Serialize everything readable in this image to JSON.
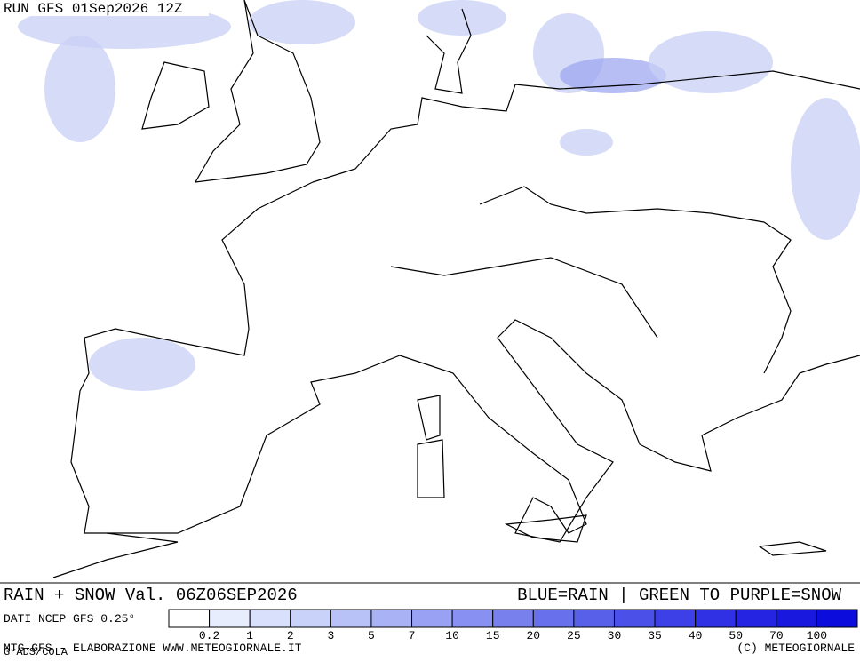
{
  "header": {
    "run": "RUN GFS 01Sep2026 12Z"
  },
  "footer": {
    "title": "RAIN + SNOW Val. 06Z06SEP2026",
    "key": "BLUE=RAIN | GREEN TO PURPLE=SNOW",
    "source": "DATI NCEP GFS 0.25°",
    "credit": "MTG-GFS - ELABORAZIONE WWW.METEOGIORNALE.IT",
    "grads": "GrADS/COLA",
    "copyright": "(C) METEOGIORNALE"
  },
  "legend": {
    "labels": [
      0.2,
      1,
      2,
      3,
      5,
      7,
      10,
      15,
      20,
      25,
      30,
      35,
      40,
      50,
      70,
      100
    ],
    "colors": [
      "#ffffff",
      "#e8edfd",
      "#d8e0fb",
      "#c9d2f9",
      "#b9c2f7",
      "#a9b2f5",
      "#98a1f3",
      "#8890f1",
      "#7880ee",
      "#6870ec",
      "#5860ea",
      "#4a50e8",
      "#3c40e6",
      "#3030e4",
      "#2424e2",
      "#1818df",
      "#0c0cdc"
    ]
  }
}
